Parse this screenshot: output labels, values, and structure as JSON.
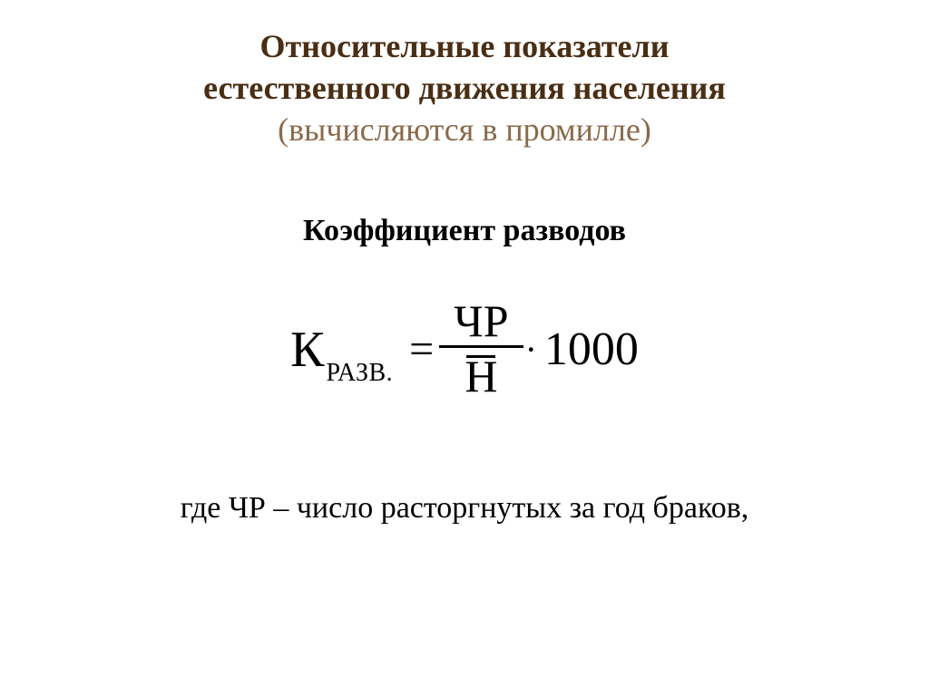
{
  "colors": {
    "title_color": "#4a2e14",
    "subtitle_color": "#8a6a4a",
    "body_color": "#000000",
    "background_color": "#ffffff"
  },
  "typography": {
    "title_fontsize_pt": 27,
    "body_fontsize_pt": 26,
    "formula_fontsize_pt": 40,
    "font_family": "Georgia / Times New Roman (serif)"
  },
  "title": {
    "line1": "Относительные показатели",
    "line2": "естественного движения населения",
    "line3": "(вычисляются в промилле)"
  },
  "subheading": "Коэффициент разводов",
  "formula": {
    "lhs_symbol": "К",
    "lhs_subscript": "РАЗВ.",
    "equals": "=",
    "numerator": "ЧР",
    "denominator": "Н",
    "denominator_has_overbar": true,
    "multiply_dot": "·",
    "multiplier": "1000"
  },
  "explanation": "где ЧР – число расторгнутых за год браков,"
}
